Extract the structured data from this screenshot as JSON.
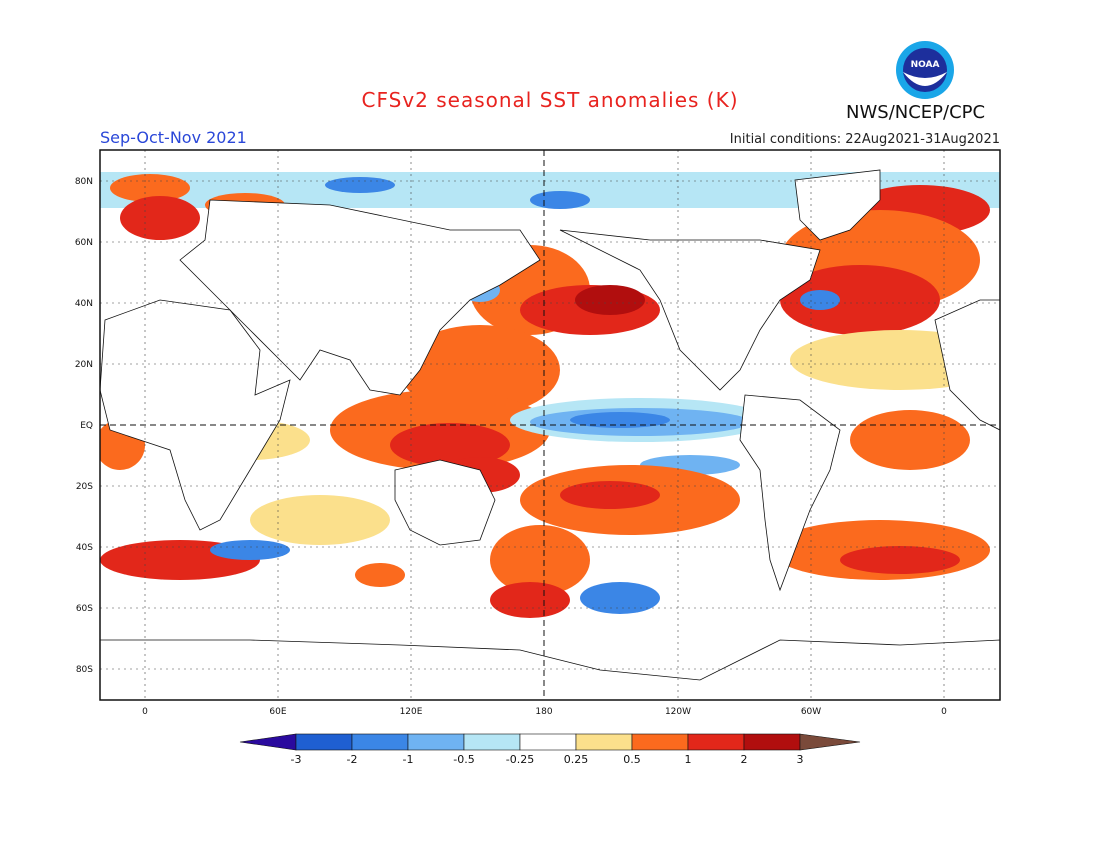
{
  "header": {
    "title": "CFSv2 seasonal SST anomalies (K)",
    "season": "Sep-Oct-Nov 2021",
    "initial_conditions": "Initial conditions: 22Aug2021-31Aug2021",
    "agency": "NWS/NCEP/CPC",
    "logo_text": "NOAA"
  },
  "map": {
    "lat_labels": [
      "80N",
      "60N",
      "40N",
      "20N",
      "EQ",
      "20S",
      "40S",
      "60S",
      "80S"
    ],
    "lon_labels": [
      "0",
      "60E",
      "120E",
      "180",
      "120W",
      "60W",
      "0"
    ]
  },
  "colorbar": {
    "labels": [
      "-3",
      "-2",
      "-1",
      "-0.5",
      "-0.25",
      "0.25",
      "0.5",
      "1",
      "2",
      "3"
    ],
    "colors": [
      "#2a0a9e",
      "#1f5fd1",
      "#3b86e6",
      "#6fb3f2",
      "#b6e6f5",
      "#ffffff",
      "#fbe08c",
      "#fb6a1e",
      "#e2271a",
      "#b10e0e",
      "#7a4a3a"
    ]
  }
}
